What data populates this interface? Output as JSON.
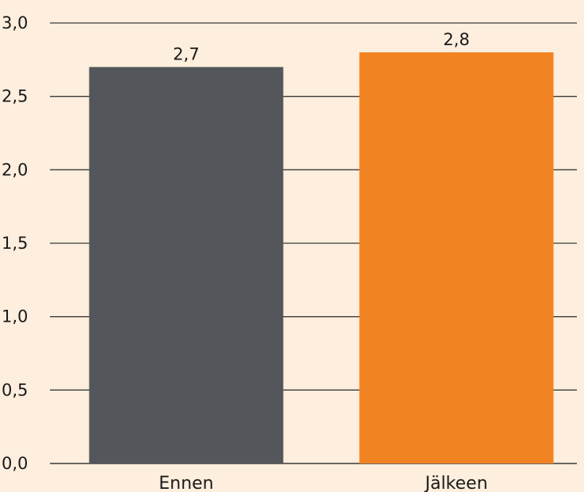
{
  "chart_data": {
    "type": "bar",
    "categories": [
      "Ennen",
      "Jälkeen"
    ],
    "values": [
      2.7,
      2.8
    ],
    "value_labels": [
      "2,7",
      "2,8"
    ],
    "bar_colors": [
      "#53565a",
      "#f28322"
    ],
    "ylim": [
      0,
      3.0
    ],
    "yticks": [
      0,
      0.5,
      1.0,
      1.5,
      2.0,
      2.5,
      3.0
    ],
    "ytick_labels": [
      "0,0",
      "0,5",
      "1,0",
      "1,5",
      "2,0",
      "2,5",
      "3,0"
    ],
    "grid": true,
    "background": "#fdeedd",
    "title": "",
    "xlabel": "",
    "ylabel": ""
  }
}
